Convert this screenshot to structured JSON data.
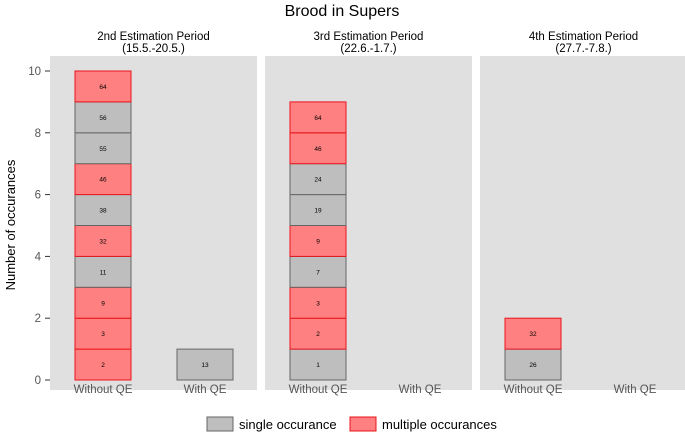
{
  "chart_data": {
    "type": "bar",
    "subtype": "stacked-tiles-faceted",
    "title": "Brood in Supers",
    "ylabel": "Number of occurances",
    "xlabel": "",
    "ylim": [
      0,
      10
    ],
    "yticks": [
      0,
      2,
      4,
      6,
      8,
      10
    ],
    "categories": [
      "Without QE",
      "With QE"
    ],
    "legend": {
      "position": "bottom",
      "items": [
        {
          "key": "single",
          "label": "single occurance",
          "fill": "#bebebe",
          "stroke": "#666666"
        },
        {
          "key": "multiple",
          "label": "multiple occurances",
          "fill": "#ff8080",
          "stroke": "#e8141c"
        }
      ]
    },
    "panels": [
      {
        "title": "2nd Estimation Period",
        "subtitle": "(15.5.-20.5.)",
        "bars": [
          {
            "category": "Without QE",
            "segments": [
              {
                "label": "2",
                "type": "multiple"
              },
              {
                "label": "3",
                "type": "multiple"
              },
              {
                "label": "9",
                "type": "multiple"
              },
              {
                "label": "11",
                "type": "single"
              },
              {
                "label": "32",
                "type": "multiple"
              },
              {
                "label": "38",
                "type": "single"
              },
              {
                "label": "46",
                "type": "multiple"
              },
              {
                "label": "55",
                "type": "single"
              },
              {
                "label": "56",
                "type": "single"
              },
              {
                "label": "64",
                "type": "multiple"
              }
            ]
          },
          {
            "category": "With QE",
            "segments": [
              {
                "label": "13",
                "type": "single"
              }
            ]
          }
        ]
      },
      {
        "title": "3rd Estimation Period",
        "subtitle": "(22.6.-1.7.)",
        "bars": [
          {
            "category": "Without QE",
            "segments": [
              {
                "label": "1",
                "type": "single"
              },
              {
                "label": "2",
                "type": "multiple"
              },
              {
                "label": "3",
                "type": "multiple"
              },
              {
                "label": "7",
                "type": "single"
              },
              {
                "label": "9",
                "type": "multiple"
              },
              {
                "label": "19",
                "type": "single"
              },
              {
                "label": "24",
                "type": "single"
              },
              {
                "label": "46",
                "type": "multiple"
              },
              {
                "label": "64",
                "type": "multiple"
              }
            ]
          },
          {
            "category": "With QE",
            "segments": []
          }
        ]
      },
      {
        "title": "4th Estimation Period",
        "subtitle": "(27.7.-7.8.)",
        "bars": [
          {
            "category": "Without QE",
            "segments": [
              {
                "label": "26",
                "type": "single"
              },
              {
                "label": "32",
                "type": "multiple"
              }
            ]
          },
          {
            "category": "With QE",
            "segments": []
          }
        ]
      }
    ]
  }
}
